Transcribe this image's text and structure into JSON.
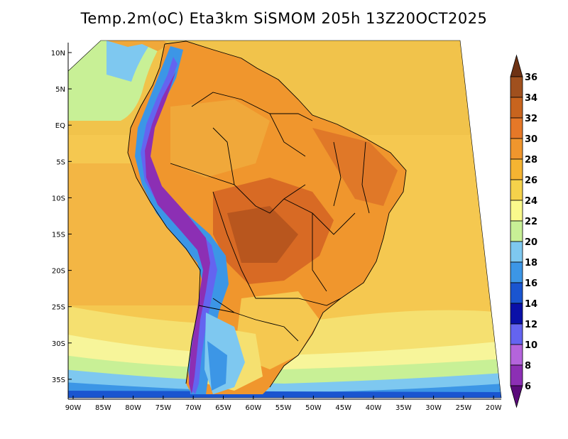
{
  "title": "Temp.2m(oC) Eta3km SiSMOM 205h 13Z20OCT2025",
  "lat_labels": [
    "10N",
    "5N",
    "EQ",
    "5S",
    "10S",
    "15S",
    "20S",
    "25S",
    "30S",
    "35S"
  ],
  "lon_labels": [
    "90W",
    "85W",
    "80W",
    "75W",
    "70W",
    "65W",
    "60W",
    "55W",
    "50W",
    "45W",
    "40W",
    "35W",
    "30W",
    "25W",
    "20W"
  ],
  "colorbar": {
    "labels": [
      "6",
      "8",
      "10",
      "12",
      "14",
      "16",
      "18",
      "20",
      "22",
      "24",
      "26",
      "28",
      "30",
      "32",
      "34",
      "36"
    ],
    "colors": [
      "#5a0a7a",
      "#8c2fb4",
      "#b464dc",
      "#6464f0",
      "#0a10a8",
      "#1a55d0",
      "#3c96e6",
      "#7ec8f0",
      "#c8f096",
      "#fafa8c",
      "#f5d24b",
      "#f5b432",
      "#f0962d",
      "#e67828",
      "#c8641e",
      "#a0501e",
      "#6e3214"
    ]
  }
}
